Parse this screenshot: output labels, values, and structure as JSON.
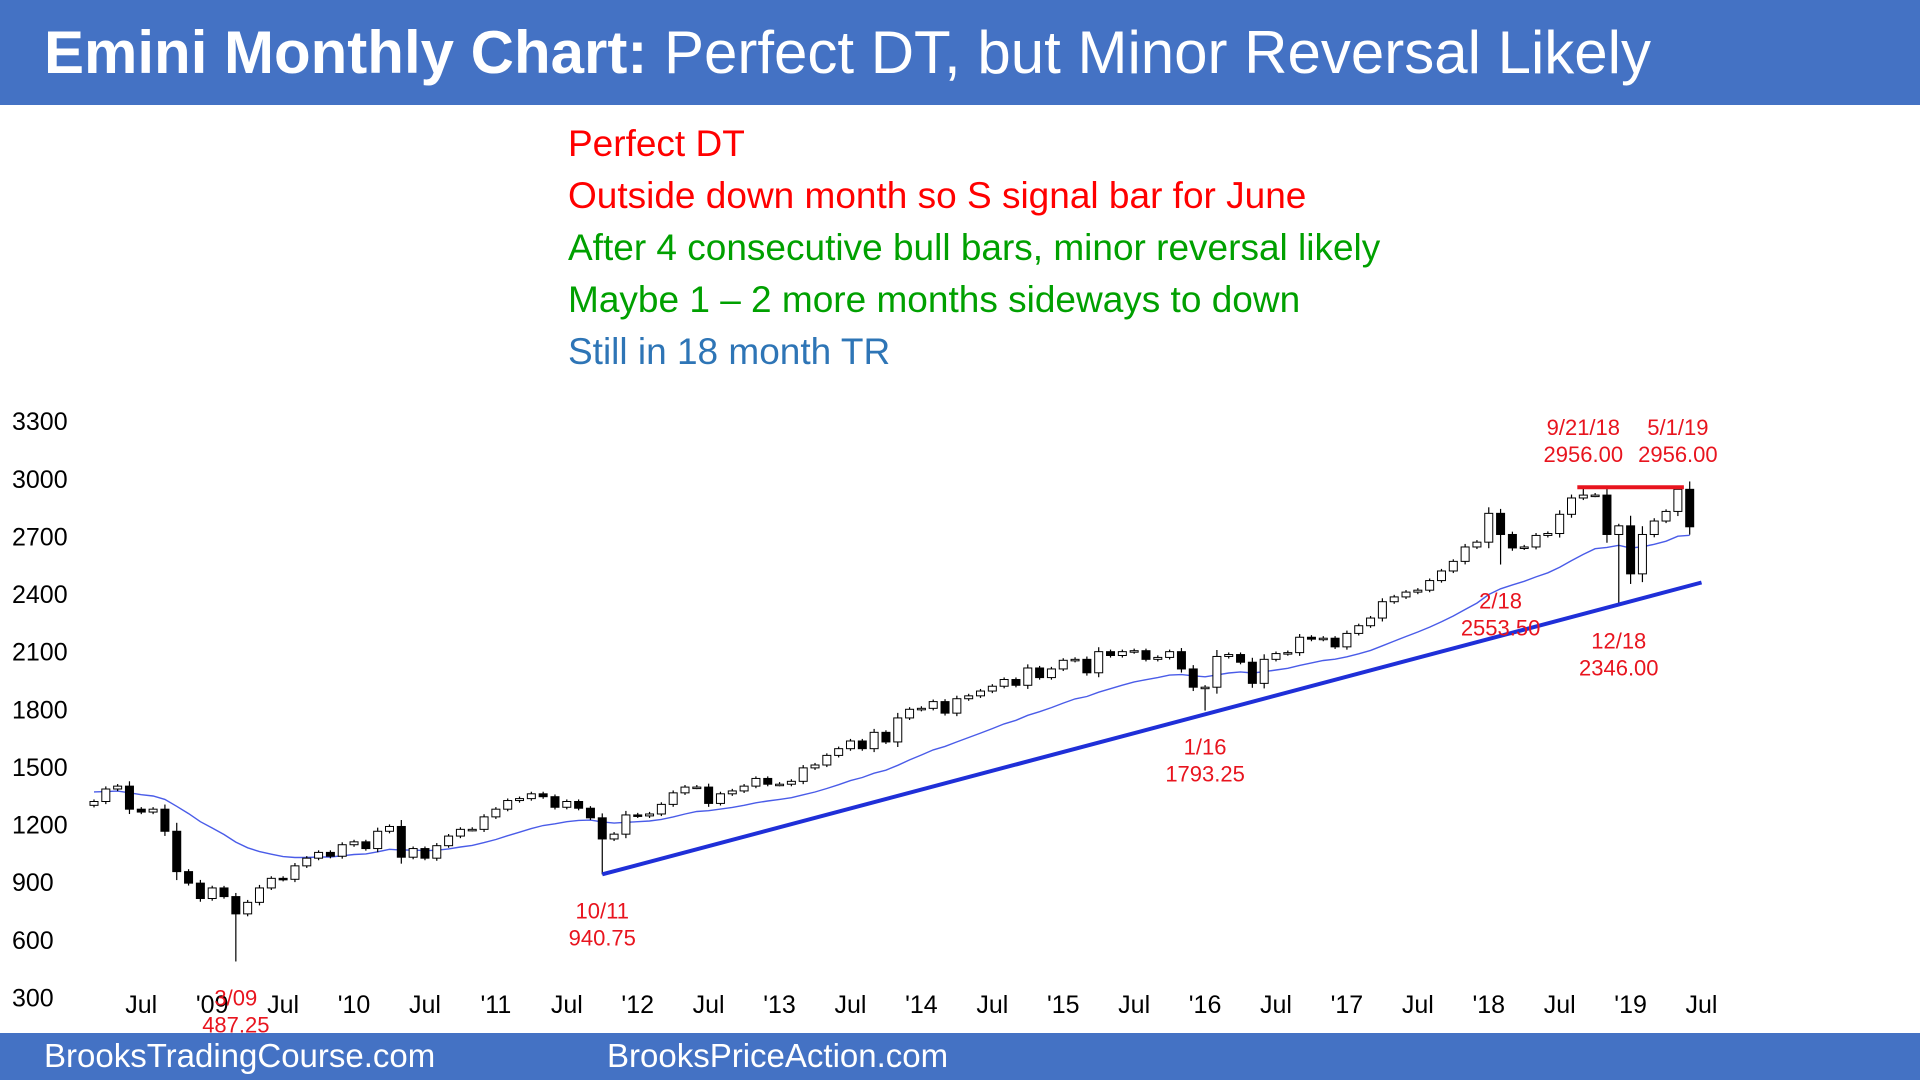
{
  "title": {
    "bold": "Emini Monthly Chart:",
    "rest": " Perfect DT, but Minor Reversal Likely"
  },
  "footer": {
    "left": "BrooksTradingCourse.com",
    "right": "BrooksPriceAction.com"
  },
  "notes": [
    {
      "text": "Perfect DT",
      "color": "#ff0000"
    },
    {
      "text": "Outside down month so S signal bar for June",
      "color": "#ff0000"
    },
    {
      "text": "After 4 consecutive bull bars, minor reversal likely",
      "color": "#00a000"
    },
    {
      "text": "Maybe 1 – 2 more months sideways to down",
      "color": "#00a000"
    },
    {
      "text": "Still in 18 month TR",
      "color": "#2e75b6"
    }
  ],
  "chart_data": {
    "type": "candlestick",
    "frequency": "monthly",
    "start": "2008-03",
    "ylim": [
      150,
      3450
    ],
    "yticks": [
      300,
      600,
      900,
      1200,
      1500,
      1800,
      2100,
      2400,
      2700,
      3000,
      3300
    ],
    "xlim": [
      "2008-03",
      "2019-08"
    ],
    "xticks": [
      {
        "label": "Jul",
        "date": "2008-07"
      },
      {
        "label": "'09",
        "date": "2009-01"
      },
      {
        "label": "Jul",
        "date": "2009-07"
      },
      {
        "label": "'10",
        "date": "2010-01"
      },
      {
        "label": "Jul",
        "date": "2010-07"
      },
      {
        "label": "'11",
        "date": "2011-01"
      },
      {
        "label": "Jul",
        "date": "2011-07"
      },
      {
        "label": "'12",
        "date": "2012-01"
      },
      {
        "label": "Jul",
        "date": "2012-07"
      },
      {
        "label": "'13",
        "date": "2013-01"
      },
      {
        "label": "Jul",
        "date": "2013-07"
      },
      {
        "label": "'14",
        "date": "2014-01"
      },
      {
        "label": "Jul",
        "date": "2014-07"
      },
      {
        "label": "'15",
        "date": "2015-01"
      },
      {
        "label": "Jul",
        "date": "2015-07"
      },
      {
        "label": "'16",
        "date": "2016-01"
      },
      {
        "label": "Jul",
        "date": "2016-07"
      },
      {
        "label": "'17",
        "date": "2017-01"
      },
      {
        "label": "Jul",
        "date": "2017-07"
      },
      {
        "label": "'18",
        "date": "2018-01"
      },
      {
        "label": "Jul",
        "date": "2018-07"
      },
      {
        "label": "'19",
        "date": "2019-01"
      },
      {
        "label": "Jul",
        "date": "2019-07"
      }
    ],
    "closes": [
      1320,
      1385,
      1400,
      1280,
      1265,
      1280,
      1165,
      955,
      895,
      815,
      870,
      825,
      735,
      795,
      870,
      920,
      915,
      985,
      1025,
      1055,
      1035,
      1095,
      1110,
      1075,
      1165,
      1190,
      1030,
      1075,
      1025,
      1090,
      1140,
      1175,
      1175,
      1240,
      1280,
      1325,
      1335,
      1360,
      1345,
      1290,
      1320,
      1285,
      1235,
      1125,
      1150,
      1250,
      1245,
      1255,
      1305,
      1365,
      1395,
      1395,
      1310,
      1360,
      1375,
      1400,
      1440,
      1410,
      1410,
      1425,
      1495,
      1510,
      1560,
      1595,
      1635,
      1595,
      1680,
      1630,
      1755,
      1800,
      1805,
      1840,
      1780,
      1855,
      1870,
      1895,
      1920,
      1955,
      1925,
      2015,
      1965,
      2010,
      2055,
      2060,
      1990,
      2100,
      2080,
      2100,
      2105,
      2060,
      2070,
      2100,
      2010,
      1915,
      1915,
      2075,
      2085,
      2045,
      1935,
      2060,
      2090,
      2095,
      2175,
      2165,
      2170,
      2125,
      2195,
      2235,
      2275,
      2360,
      2385,
      2410,
      2420,
      2470,
      2520,
      2570,
      2645,
      2670,
      2820,
      2710,
      2640,
      2645,
      2705,
      2715,
      2815,
      2900,
      2915,
      2915,
      2710,
      2755,
      2505,
      2710,
      2780,
      2830,
      2945,
      2750
    ],
    "trend_line": {
      "from": {
        "date": "2011-10",
        "price": 940.75
      },
      "to": {
        "date": "2019-07",
        "price": 2460
      }
    },
    "resistance_line": {
      "from": {
        "date": "2018-09",
        "price": 2956
      },
      "to": {
        "date": "2019-05",
        "price": 2956
      }
    },
    "annotations": [
      {
        "date": "2009-03",
        "price": 487.25,
        "lines": [
          "3/09",
          "487.25"
        ],
        "position": "below"
      },
      {
        "date": "2011-10",
        "price": 940.75,
        "lines": [
          "10/11",
          "940.75"
        ],
        "position": "below"
      },
      {
        "date": "2016-01",
        "price": 1793.25,
        "lines": [
          "1/16",
          "1793.25"
        ],
        "position": "below"
      },
      {
        "date": "2018-02",
        "price": 2553.5,
        "lines": [
          "2/18",
          "2553.50"
        ],
        "position": "below"
      },
      {
        "date": "2018-12",
        "price": 2346,
        "lines": [
          "12/18",
          "2346.00"
        ],
        "position": "below"
      },
      {
        "date": "2018-09",
        "price": 2956,
        "lines": [
          "9/21/18",
          "2956.00"
        ],
        "position": "above"
      },
      {
        "date": "2019-05",
        "price": 2956,
        "lines": [
          "5/1/19",
          "2956.00"
        ],
        "position": "above"
      }
    ],
    "colors": {
      "bull": "#ffffff",
      "bear": "#000000",
      "ema": "#4a5ce8",
      "trend": "#1f2fd8",
      "resistance": "#e8141e",
      "label": "#e8141e"
    }
  }
}
